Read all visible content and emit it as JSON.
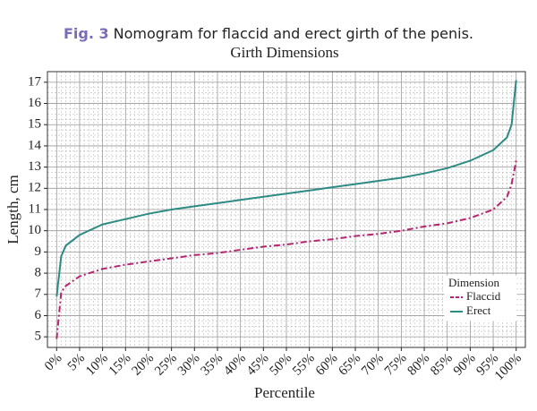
{
  "chart_data": {
    "type": "line",
    "figure_label": "Fig. 3",
    "title": "Nomogram for flaccid and erect girth of the penis.",
    "subtitle": "Girth Dimensions",
    "x_label": "Percentile",
    "y_label": "Length, cm",
    "x": [
      0,
      1,
      2,
      5,
      10,
      15,
      20,
      25,
      30,
      35,
      40,
      45,
      50,
      55,
      60,
      65,
      70,
      75,
      80,
      85,
      90,
      95,
      98,
      99,
      100
    ],
    "series": [
      {
        "name": "Flaccid",
        "color": "#b5256e",
        "style": "dashdot",
        "values": [
          4.9,
          7.1,
          7.4,
          7.85,
          8.2,
          8.4,
          8.55,
          8.7,
          8.85,
          8.95,
          9.1,
          9.25,
          9.35,
          9.5,
          9.6,
          9.75,
          9.85,
          10.0,
          10.2,
          10.35,
          10.6,
          11.0,
          11.6,
          12.2,
          13.3
        ]
      },
      {
        "name": "Erect",
        "color": "#2e8b84",
        "style": "solid",
        "values": [
          6.9,
          8.8,
          9.3,
          9.8,
          10.3,
          10.55,
          10.8,
          11.0,
          11.15,
          11.3,
          11.45,
          11.6,
          11.75,
          11.9,
          12.05,
          12.2,
          12.35,
          12.5,
          12.7,
          12.95,
          13.3,
          13.8,
          14.4,
          15.0,
          17.1
        ]
      }
    ],
    "legend_title": "Dimension",
    "legend_position": "lower right",
    "xlim": [
      -2,
      102
    ],
    "ylim": [
      4.5,
      17.5
    ],
    "xticks": [
      {
        "value": 0,
        "label": "0%"
      },
      {
        "value": 5,
        "label": "5%"
      },
      {
        "value": 10,
        "label": "10%"
      },
      {
        "value": 15,
        "label": "15%"
      },
      {
        "value": 20,
        "label": "20%"
      },
      {
        "value": 25,
        "label": "25%"
      },
      {
        "value": 30,
        "label": "30%"
      },
      {
        "value": 35,
        "label": "35%"
      },
      {
        "value": 40,
        "label": "40%"
      },
      {
        "value": 45,
        "label": "45%"
      },
      {
        "value": 50,
        "label": "50%"
      },
      {
        "value": 55,
        "label": "55%"
      },
      {
        "value": 60,
        "label": "60%"
      },
      {
        "value": 65,
        "label": "65%"
      },
      {
        "value": 70,
        "label": "70%"
      },
      {
        "value": 75,
        "label": "75%"
      },
      {
        "value": 80,
        "label": "80%"
      },
      {
        "value": 85,
        "label": "85%"
      },
      {
        "value": 90,
        "label": "90%"
      },
      {
        "value": 95,
        "label": "95%"
      },
      {
        "value": 100,
        "label": "100%"
      }
    ],
    "yticks": [
      5,
      6,
      7,
      8,
      9,
      10,
      11,
      12,
      13,
      14,
      15,
      16,
      17
    ],
    "grid": true,
    "minor_grid": true
  }
}
